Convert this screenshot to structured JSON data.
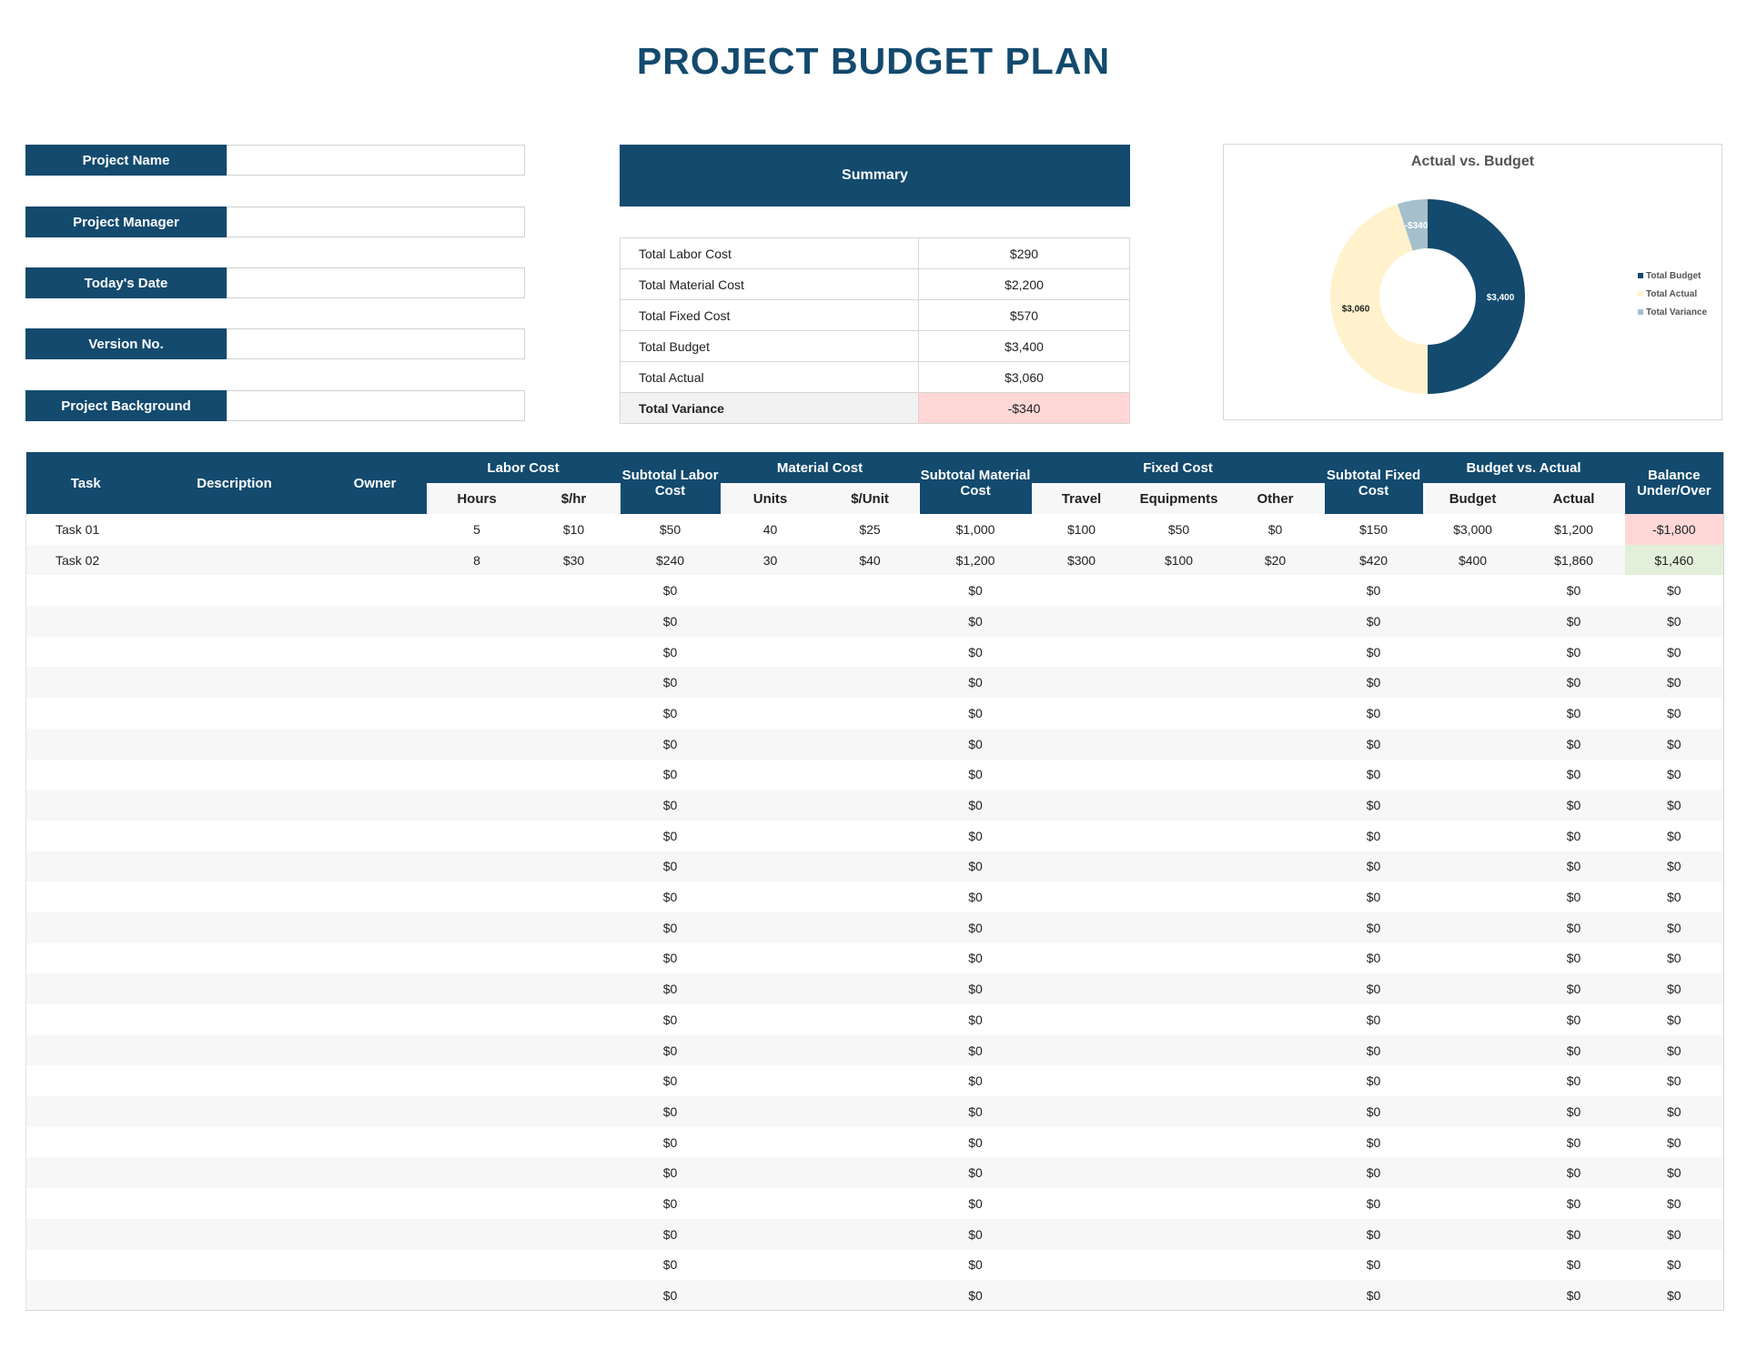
{
  "title": "PROJECT BUDGET PLAN",
  "info_fields": [
    {
      "label": "Project Name",
      "value": ""
    },
    {
      "label": "Project Manager",
      "value": ""
    },
    {
      "label": "Today's Date",
      "value": ""
    },
    {
      "label": "Version No.",
      "value": ""
    },
    {
      "label": "Project Background",
      "value": ""
    }
  ],
  "summary": {
    "title": "Summary",
    "rows": [
      {
        "label": "Total Labor Cost",
        "value": "$290"
      },
      {
        "label": "Total Material Cost",
        "value": "$2,200"
      },
      {
        "label": "Total Fixed Cost",
        "value": "$570"
      },
      {
        "label": "Total Budget",
        "value": "$3,400"
      },
      {
        "label": "Total Actual",
        "value": "$3,060"
      },
      {
        "label": "Total Variance",
        "value": "-$340"
      }
    ]
  },
  "chart_data": {
    "type": "pie",
    "variant": "donut",
    "title": "Actual vs. Budget",
    "categories": [
      "Total Budget",
      "Total Actual",
      "Total Variance"
    ],
    "values": [
      3400,
      3060,
      -340
    ],
    "data_labels": [
      "$3,400",
      "$3,060",
      "-$340"
    ],
    "colors": [
      "#134a6e",
      "#fff2cc",
      "#a6bfcc"
    ],
    "legend": "right"
  },
  "table": {
    "headers": {
      "task": "Task",
      "description": "Description",
      "owner": "Owner",
      "labor_cost": "Labor Cost",
      "hours": "Hours",
      "rate": "$/hr",
      "subtotal_labor": "Subtotal Labor Cost",
      "material_cost": "Material Cost",
      "units": "Units",
      "unit_cost": "$/Unit",
      "subtotal_material": "Subtotal Material Cost",
      "fixed_cost": "Fixed Cost",
      "travel": "Travel",
      "equipments": "Equipments",
      "other": "Other",
      "subtotal_fixed": "Subtotal Fixed Cost",
      "budget_vs_actual": "Budget vs. Actual",
      "budget": "Budget",
      "actual": "Actual",
      "balance": "Balance Under/Over"
    },
    "rows": [
      [
        "Task 01",
        "",
        "",
        "5",
        "$10",
        "$50",
        "40",
        "$25",
        "$1,000",
        "$100",
        "$50",
        "$0",
        "$150",
        "$3,000",
        "$1,200",
        "-$1,800"
      ],
      [
        "Task 02",
        "",
        "",
        "8",
        "$30",
        "$240",
        "30",
        "$40",
        "$1,200",
        "$300",
        "$100",
        "$20",
        "$420",
        "$400",
        "$1,860",
        "$1,460"
      ],
      [
        "",
        "",
        "",
        "",
        "",
        "$0",
        "",
        "",
        "$0",
        "",
        "",
        "",
        "$0",
        "",
        "$0",
        "$0"
      ],
      [
        "",
        "",
        "",
        "",
        "",
        "$0",
        "",
        "",
        "$0",
        "",
        "",
        "",
        "$0",
        "",
        "$0",
        "$0"
      ],
      [
        "",
        "",
        "",
        "",
        "",
        "$0",
        "",
        "",
        "$0",
        "",
        "",
        "",
        "$0",
        "",
        "$0",
        "$0"
      ],
      [
        "",
        "",
        "",
        "",
        "",
        "$0",
        "",
        "",
        "$0",
        "",
        "",
        "",
        "$0",
        "",
        "$0",
        "$0"
      ],
      [
        "",
        "",
        "",
        "",
        "",
        "$0",
        "",
        "",
        "$0",
        "",
        "",
        "",
        "$0",
        "",
        "$0",
        "$0"
      ],
      [
        "",
        "",
        "",
        "",
        "",
        "$0",
        "",
        "",
        "$0",
        "",
        "",
        "",
        "$0",
        "",
        "$0",
        "$0"
      ],
      [
        "",
        "",
        "",
        "",
        "",
        "$0",
        "",
        "",
        "$0",
        "",
        "",
        "",
        "$0",
        "",
        "$0",
        "$0"
      ],
      [
        "",
        "",
        "",
        "",
        "",
        "$0",
        "",
        "",
        "$0",
        "",
        "",
        "",
        "$0",
        "",
        "$0",
        "$0"
      ],
      [
        "",
        "",
        "",
        "",
        "",
        "$0",
        "",
        "",
        "$0",
        "",
        "",
        "",
        "$0",
        "",
        "$0",
        "$0"
      ],
      [
        "",
        "",
        "",
        "",
        "",
        "$0",
        "",
        "",
        "$0",
        "",
        "",
        "",
        "$0",
        "",
        "$0",
        "$0"
      ],
      [
        "",
        "",
        "",
        "",
        "",
        "$0",
        "",
        "",
        "$0",
        "",
        "",
        "",
        "$0",
        "",
        "$0",
        "$0"
      ],
      [
        "",
        "",
        "",
        "",
        "",
        "$0",
        "",
        "",
        "$0",
        "",
        "",
        "",
        "$0",
        "",
        "$0",
        "$0"
      ],
      [
        "",
        "",
        "",
        "",
        "",
        "$0",
        "",
        "",
        "$0",
        "",
        "",
        "",
        "$0",
        "",
        "$0",
        "$0"
      ],
      [
        "",
        "",
        "",
        "",
        "",
        "$0",
        "",
        "",
        "$0",
        "",
        "",
        "",
        "$0",
        "",
        "$0",
        "$0"
      ],
      [
        "",
        "",
        "",
        "",
        "",
        "$0",
        "",
        "",
        "$0",
        "",
        "",
        "",
        "$0",
        "",
        "$0",
        "$0"
      ],
      [
        "",
        "",
        "",
        "",
        "",
        "$0",
        "",
        "",
        "$0",
        "",
        "",
        "",
        "$0",
        "",
        "$0",
        "$0"
      ],
      [
        "",
        "",
        "",
        "",
        "",
        "$0",
        "",
        "",
        "$0",
        "",
        "",
        "",
        "$0",
        "",
        "$0",
        "$0"
      ],
      [
        "",
        "",
        "",
        "",
        "",
        "$0",
        "",
        "",
        "$0",
        "",
        "",
        "",
        "$0",
        "",
        "$0",
        "$0"
      ],
      [
        "",
        "",
        "",
        "",
        "",
        "$0",
        "",
        "",
        "$0",
        "",
        "",
        "",
        "$0",
        "",
        "$0",
        "$0"
      ],
      [
        "",
        "",
        "",
        "",
        "",
        "$0",
        "",
        "",
        "$0",
        "",
        "",
        "",
        "$0",
        "",
        "$0",
        "$0"
      ],
      [
        "",
        "",
        "",
        "",
        "",
        "$0",
        "",
        "",
        "$0",
        "",
        "",
        "",
        "$0",
        "",
        "$0",
        "$0"
      ],
      [
        "",
        "",
        "",
        "",
        "",
        "$0",
        "",
        "",
        "$0",
        "",
        "",
        "",
        "$0",
        "",
        "$0",
        "$0"
      ],
      [
        "",
        "",
        "",
        "",
        "",
        "$0",
        "",
        "",
        "$0",
        "",
        "",
        "",
        "$0",
        "",
        "$0",
        "$0"
      ],
      [
        "",
        "",
        "",
        "",
        "",
        "$0",
        "",
        "",
        "$0",
        "",
        "",
        "",
        "$0",
        "",
        "$0",
        "$0"
      ]
    ],
    "colors": {
      "header": "#134a6e",
      "negative": "#ffd7d7",
      "positive": "#e2efda"
    }
  }
}
